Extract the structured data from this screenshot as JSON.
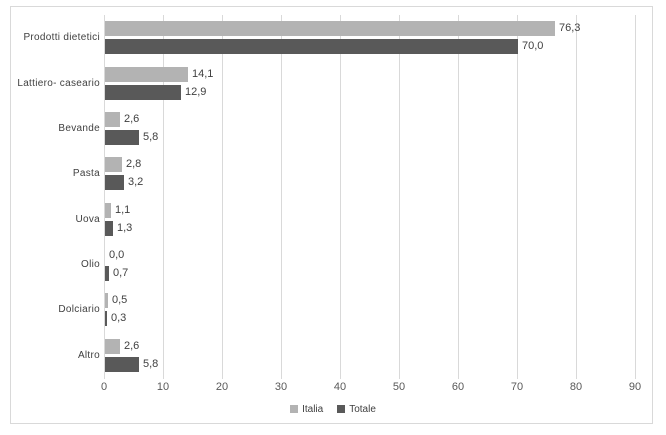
{
  "chart_data": {
    "type": "bar",
    "orientation": "horizontal",
    "title": "",
    "categories": [
      "Prodotti dietetici",
      "Lattiero- caseario",
      "Bevande",
      "Pasta",
      "Uova",
      "Olio",
      "Dolciario",
      "Altro"
    ],
    "series": [
      {
        "name": "Italia",
        "color": "#b3b3b3",
        "values": [
          76.3,
          14.1,
          2.6,
          2.8,
          1.1,
          0.0,
          0.5,
          2.6
        ],
        "labels": [
          "76,3",
          "14,1",
          "2,6",
          "2,8",
          "1,1",
          "0,0",
          "0,5",
          "2,6"
        ]
      },
      {
        "name": "Totale",
        "color": "#595959",
        "values": [
          70.0,
          12.9,
          5.8,
          3.2,
          1.3,
          0.7,
          0.3,
          5.8
        ],
        "labels": [
          "70,0",
          "12,9",
          "5,8",
          "3,2",
          "1,3",
          "0,7",
          "0,3",
          "5,8"
        ]
      }
    ],
    "xlim": [
      0,
      90
    ],
    "xticks": [
      0,
      10,
      20,
      30,
      40,
      50,
      60,
      70,
      80,
      90
    ],
    "xtick_labels": [
      "0",
      "10",
      "20",
      "30",
      "40",
      "50",
      "60",
      "70",
      "80",
      "90"
    ],
    "grid": true,
    "legend_position": "bottom",
    "colors": {
      "gridline": "#d9d9d9",
      "border": "#d9d9d9",
      "axis_text": "#595959",
      "label_text": "#404040",
      "background": "#ffffff"
    }
  }
}
